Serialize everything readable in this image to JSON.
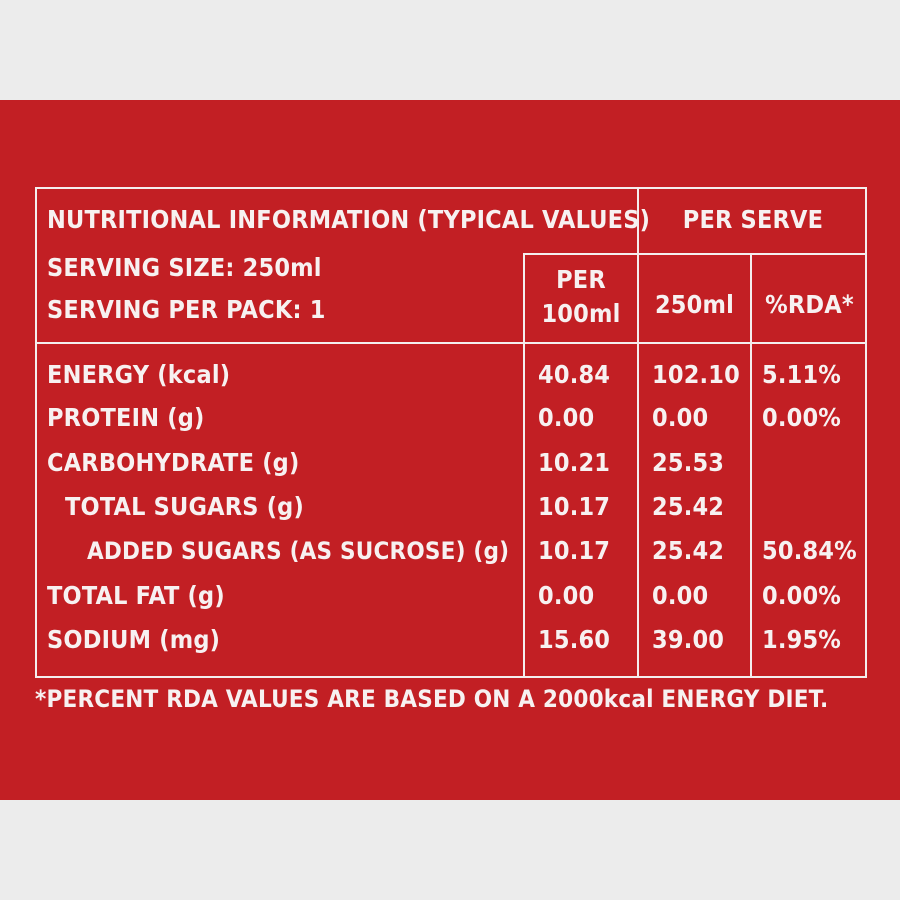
{
  "header": {
    "title": "NUTRITIONAL INFORMATION (TYPICAL VALUES)",
    "per_serve": "PER SERVE",
    "serving_size": "SERVING SIZE: 250ml",
    "serving_per_pack": "SERVING PER PACK: 1",
    "per_100ml_line1": "PER",
    "per_100ml_line2": "100ml",
    "col_250ml": "250ml",
    "col_rda": "%RDA*"
  },
  "rows": [
    {
      "label": "ENERGY (kcal)",
      "per100": "40.84",
      "per250": "102.10",
      "rda": "5.11%"
    },
    {
      "label": "PROTEIN (g)",
      "per100": "0.00",
      "per250": "0.00",
      "rda": "0.00%"
    },
    {
      "label": "CARBOHYDRATE (g)",
      "per100": "10.21",
      "per250": "25.53",
      "rda": ""
    },
    {
      "label": "TOTAL SUGARS (g)",
      "per100": "10.17",
      "per250": "25.42",
      "rda": ""
    },
    {
      "label": "ADDED SUGARS (AS SUCROSE) (g)",
      "per100": "10.17",
      "per250": "25.42",
      "rda": "50.84%"
    },
    {
      "label": "TOTAL FAT (g)",
      "per100": "0.00",
      "per250": "0.00",
      "rda": "0.00%"
    },
    {
      "label": "SODIUM (mg)",
      "per100": "15.60",
      "per250": "39.00",
      "rda": "1.95%"
    }
  ],
  "footnote": "*PERCENT RDA VALUES ARE BASED ON A 2000kcal ENERGY DIET.",
  "colors": {
    "panel": "#c21f24",
    "text": "#f7f1f1",
    "background": "#ececec"
  }
}
